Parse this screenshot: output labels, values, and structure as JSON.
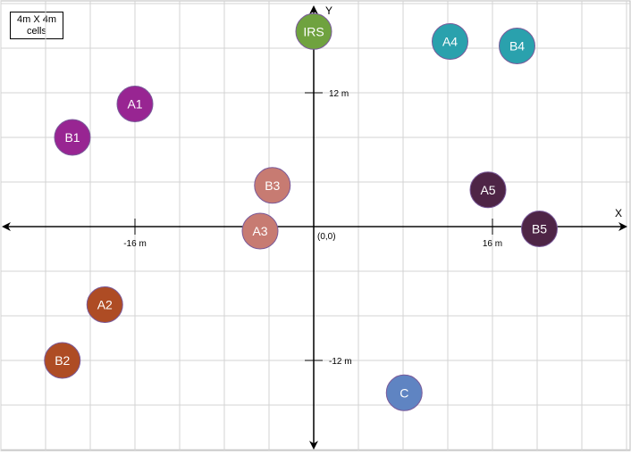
{
  "legend": {
    "line1": "4m X 4m",
    "line2": "cells"
  },
  "axes": {
    "x_label": "X",
    "y_label": "Y",
    "origin_label": "(0,0)",
    "x_ticks": [
      {
        "label": "-16 m",
        "value": -16
      },
      {
        "label": "16 m",
        "value": 16
      }
    ],
    "y_ticks": [
      {
        "label": "12 m",
        "value": 12
      },
      {
        "label": "-12 m",
        "value": -12
      }
    ]
  },
  "nodes": [
    {
      "id": "IRS",
      "label": "IRS",
      "x": 0,
      "y": 17.5,
      "color": "#6fa23f"
    },
    {
      "id": "A4",
      "label": "A4",
      "x": 12.2,
      "y": 16.6,
      "color": "#2aa1ad"
    },
    {
      "id": "B4",
      "label": "B4",
      "x": 18.2,
      "y": 16.2,
      "color": "#2aa1ad"
    },
    {
      "id": "A1",
      "label": "A1",
      "x": -16,
      "y": 11,
      "color": "#982592"
    },
    {
      "id": "B1",
      "label": "B1",
      "x": -21.6,
      "y": 8,
      "color": "#982592"
    },
    {
      "id": "B3",
      "label": "B3",
      "x": -3.7,
      "y": 3.7,
      "color": "#c77b72"
    },
    {
      "id": "A3",
      "label": "A3",
      "x": -4.8,
      "y": -0.4,
      "color": "#c77b72"
    },
    {
      "id": "A5",
      "label": "A5",
      "x": 15.6,
      "y": 3.3,
      "color": "#4e2546"
    },
    {
      "id": "B5",
      "label": "B5",
      "x": 20.2,
      "y": -0.2,
      "color": "#4e2546"
    },
    {
      "id": "A2",
      "label": "A2",
      "x": -18.7,
      "y": -7,
      "color": "#ae4c24"
    },
    {
      "id": "B2",
      "label": "B2",
      "x": -22.5,
      "y": -12,
      "color": "#ae4c24"
    },
    {
      "id": "C",
      "label": "C",
      "x": 8.1,
      "y": -14.9,
      "color": "#5f84c2"
    }
  ]
}
